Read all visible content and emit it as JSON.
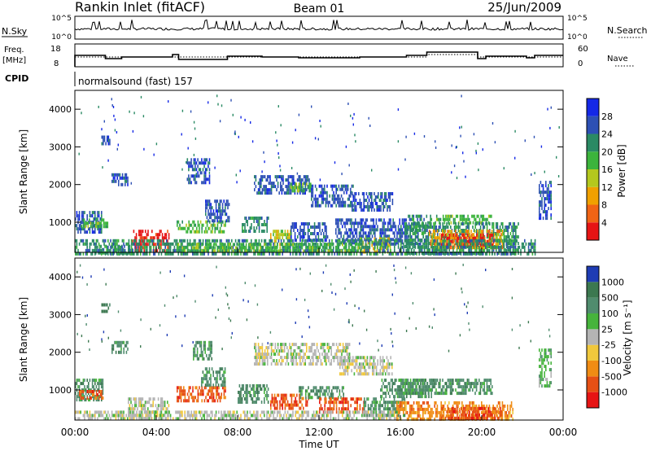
{
  "header": {
    "title": "Rankin Inlet (fitACF)",
    "beam": "Beam 01",
    "date": "25/Jun/2009"
  },
  "noise_panel": {
    "left_label": "N.Sky",
    "right_label": "N.Search",
    "left_ticks": [
      "10^5",
      "10^0"
    ],
    "right_ticks": [
      "10^5",
      "10^0"
    ]
  },
  "freq_panel": {
    "left_label_1": "Freq.",
    "left_label_2": "[MHz]",
    "right_label": "Nave",
    "left_ticks": [
      "18",
      "8"
    ],
    "right_ticks": [
      "60",
      "0"
    ]
  },
  "cpid": {
    "label": "CPID",
    "value": "normalsound (fast) 157"
  },
  "chart_data": [
    {
      "type": "heatmap",
      "name": "power",
      "ylabel": "Slant Range [km]",
      "yticks": [
        "1000",
        "2000",
        "3000",
        "4000"
      ],
      "ylim": [
        200,
        4500
      ],
      "colorbar": {
        "label": "Power [dB]",
        "ticks": [
          "4",
          "8",
          "12",
          "16",
          "20",
          "24",
          "28"
        ],
        "colors": [
          "#1428e6",
          "#2d50b4",
          "#2a8a64",
          "#3cb43c",
          "#b4c81e",
          "#f0a000",
          "#f06414",
          "#e61414"
        ]
      },
      "regions": [
        {
          "t0": 0.0,
          "t1": 1.3,
          "r0": 700,
          "r1": 1300,
          "level": 1
        },
        {
          "t0": 0.3,
          "t1": 1.6,
          "r0": 900,
          "r1": 1100,
          "level": 3
        },
        {
          "t0": 2.8,
          "t1": 4.6,
          "r0": 200,
          "r1": 800,
          "level": 7
        },
        {
          "t0": 1.0,
          "t1": 2.8,
          "r0": 200,
          "r1": 400,
          "level": 2
        },
        {
          "t0": 1.3,
          "t1": 1.7,
          "r0": 3050,
          "r1": 3300,
          "level": 1
        },
        {
          "t0": 1.8,
          "t1": 2.6,
          "r0": 2000,
          "r1": 2300,
          "level": 1
        },
        {
          "t0": 5.5,
          "t1": 6.6,
          "r0": 2050,
          "r1": 2700,
          "level": 1
        },
        {
          "t0": 5.0,
          "t1": 7.4,
          "r0": 750,
          "r1": 1050,
          "level": 3
        },
        {
          "t0": 6.4,
          "t1": 7.6,
          "r0": 1050,
          "r1": 1600,
          "level": 1
        },
        {
          "t0": 8.8,
          "t1": 11.5,
          "r0": 1750,
          "r1": 2250,
          "level": 1
        },
        {
          "t0": 10.6,
          "t1": 11.6,
          "r0": 1850,
          "r1": 2050,
          "level": 3
        },
        {
          "t0": 8.2,
          "t1": 9.5,
          "r0": 750,
          "r1": 1150,
          "level": 2
        },
        {
          "t0": 9.6,
          "t1": 10.6,
          "r0": 450,
          "r1": 800,
          "level": 4
        },
        {
          "t0": 10.6,
          "t1": 12.4,
          "r0": 500,
          "r1": 1000,
          "level": 1
        },
        {
          "t0": 11.6,
          "t1": 13.7,
          "r0": 1400,
          "r1": 2000,
          "level": 1
        },
        {
          "t0": 13.6,
          "t1": 15.6,
          "r0": 1350,
          "r1": 1800,
          "level": 1
        },
        {
          "t0": 12.8,
          "t1": 16.5,
          "r0": 450,
          "r1": 1100,
          "level": 1
        },
        {
          "t0": 14.0,
          "t1": 15.5,
          "r0": 250,
          "r1": 600,
          "level": 4
        },
        {
          "t0": 16.3,
          "t1": 17.5,
          "r0": 700,
          "r1": 1200,
          "level": 2
        },
        {
          "t0": 17.5,
          "t1": 20.5,
          "r0": 1000,
          "r1": 1200,
          "level": 3
        },
        {
          "t0": 16.2,
          "t1": 21.8,
          "r0": 200,
          "r1": 1000,
          "level": 2
        },
        {
          "t0": 17.4,
          "t1": 21.0,
          "r0": 350,
          "r1": 800,
          "level": 5
        },
        {
          "t0": 18.0,
          "t1": 20.6,
          "r0": 400,
          "r1": 700,
          "level": 7
        },
        {
          "t0": 0.0,
          "t1": 22.6,
          "r0": 200,
          "r1": 550,
          "level": 2
        },
        {
          "t0": 5.0,
          "t1": 14.0,
          "r0": 250,
          "r1": 450,
          "level": 3
        },
        {
          "t0": 22.8,
          "t1": 23.4,
          "r0": 1100,
          "r1": 2100,
          "level": 1
        }
      ]
    },
    {
      "type": "heatmap",
      "name": "velocity",
      "ylabel": "Slant Range [km]",
      "yticks": [
        "1000",
        "2000",
        "3000",
        "4000"
      ],
      "ylim": [
        200,
        4500
      ],
      "colorbar": {
        "label": "Velocity [m s⁻¹]",
        "ticks": [
          "1000",
          "500",
          "100",
          "25",
          "-25",
          "-100",
          "-500",
          "-1000"
        ],
        "colors": [
          "#1e3cb4",
          "#3c7850",
          "#508c6e",
          "#46b43c",
          "#b4b4b4",
          "#f0c83c",
          "#f08c14",
          "#e65014",
          "#e61414"
        ]
      },
      "regions": [
        {
          "t0": 0.0,
          "t1": 1.4,
          "r0": 700,
          "r1": 1300,
          "level": 2
        },
        {
          "t0": 0.2,
          "t1": 1.4,
          "r0": 800,
          "r1": 1000,
          "level": 7
        },
        {
          "t0": 1.3,
          "t1": 1.7,
          "r0": 3050,
          "r1": 3300,
          "level": 1
        },
        {
          "t0": 1.8,
          "t1": 2.6,
          "r0": 2000,
          "r1": 2300,
          "level": 2
        },
        {
          "t0": 2.6,
          "t1": 4.6,
          "r0": 200,
          "r1": 800,
          "level": 4
        },
        {
          "t0": 5.8,
          "t1": 6.8,
          "r0": 1800,
          "r1": 2300,
          "level": 2
        },
        {
          "t0": 5.0,
          "t1": 7.4,
          "r0": 700,
          "r1": 1100,
          "level": 7
        },
        {
          "t0": 6.2,
          "t1": 7.4,
          "r0": 1100,
          "r1": 1600,
          "level": 2
        },
        {
          "t0": 8.8,
          "t1": 13.5,
          "r0": 1650,
          "r1": 2250,
          "level": 4
        },
        {
          "t0": 13.0,
          "t1": 15.6,
          "r0": 1450,
          "r1": 1900,
          "level": 4
        },
        {
          "t0": 8.0,
          "t1": 9.5,
          "r0": 700,
          "r1": 1150,
          "level": 2
        },
        {
          "t0": 9.6,
          "t1": 11.5,
          "r0": 500,
          "r1": 900,
          "level": 7
        },
        {
          "t0": 11.0,
          "t1": 13.2,
          "r0": 800,
          "r1": 1100,
          "level": 2
        },
        {
          "t0": 12.0,
          "t1": 14.2,
          "r0": 400,
          "r1": 800,
          "level": 7
        },
        {
          "t0": 14.2,
          "t1": 16.2,
          "r0": 350,
          "r1": 800,
          "level": 2
        },
        {
          "t0": 15.0,
          "t1": 17.5,
          "r0": 800,
          "r1": 1300,
          "level": 2
        },
        {
          "t0": 15.8,
          "t1": 21.5,
          "r0": 200,
          "r1": 700,
          "level": 6
        },
        {
          "t0": 18.0,
          "t1": 21.0,
          "r0": 250,
          "r1": 550,
          "level": 7
        },
        {
          "t0": 16.0,
          "t1": 20.5,
          "r0": 900,
          "r1": 1300,
          "level": 2
        },
        {
          "t0": 0.0,
          "t1": 16.0,
          "r0": 200,
          "r1": 450,
          "level": 4
        },
        {
          "t0": 22.8,
          "t1": 23.4,
          "r0": 1100,
          "r1": 2100,
          "level": 3
        }
      ]
    }
  ],
  "xaxis": {
    "label": "Time UT",
    "ticks": [
      "00:00",
      "04:00",
      "08:00",
      "12:00",
      "16:00",
      "20:00",
      "00:00"
    ]
  }
}
